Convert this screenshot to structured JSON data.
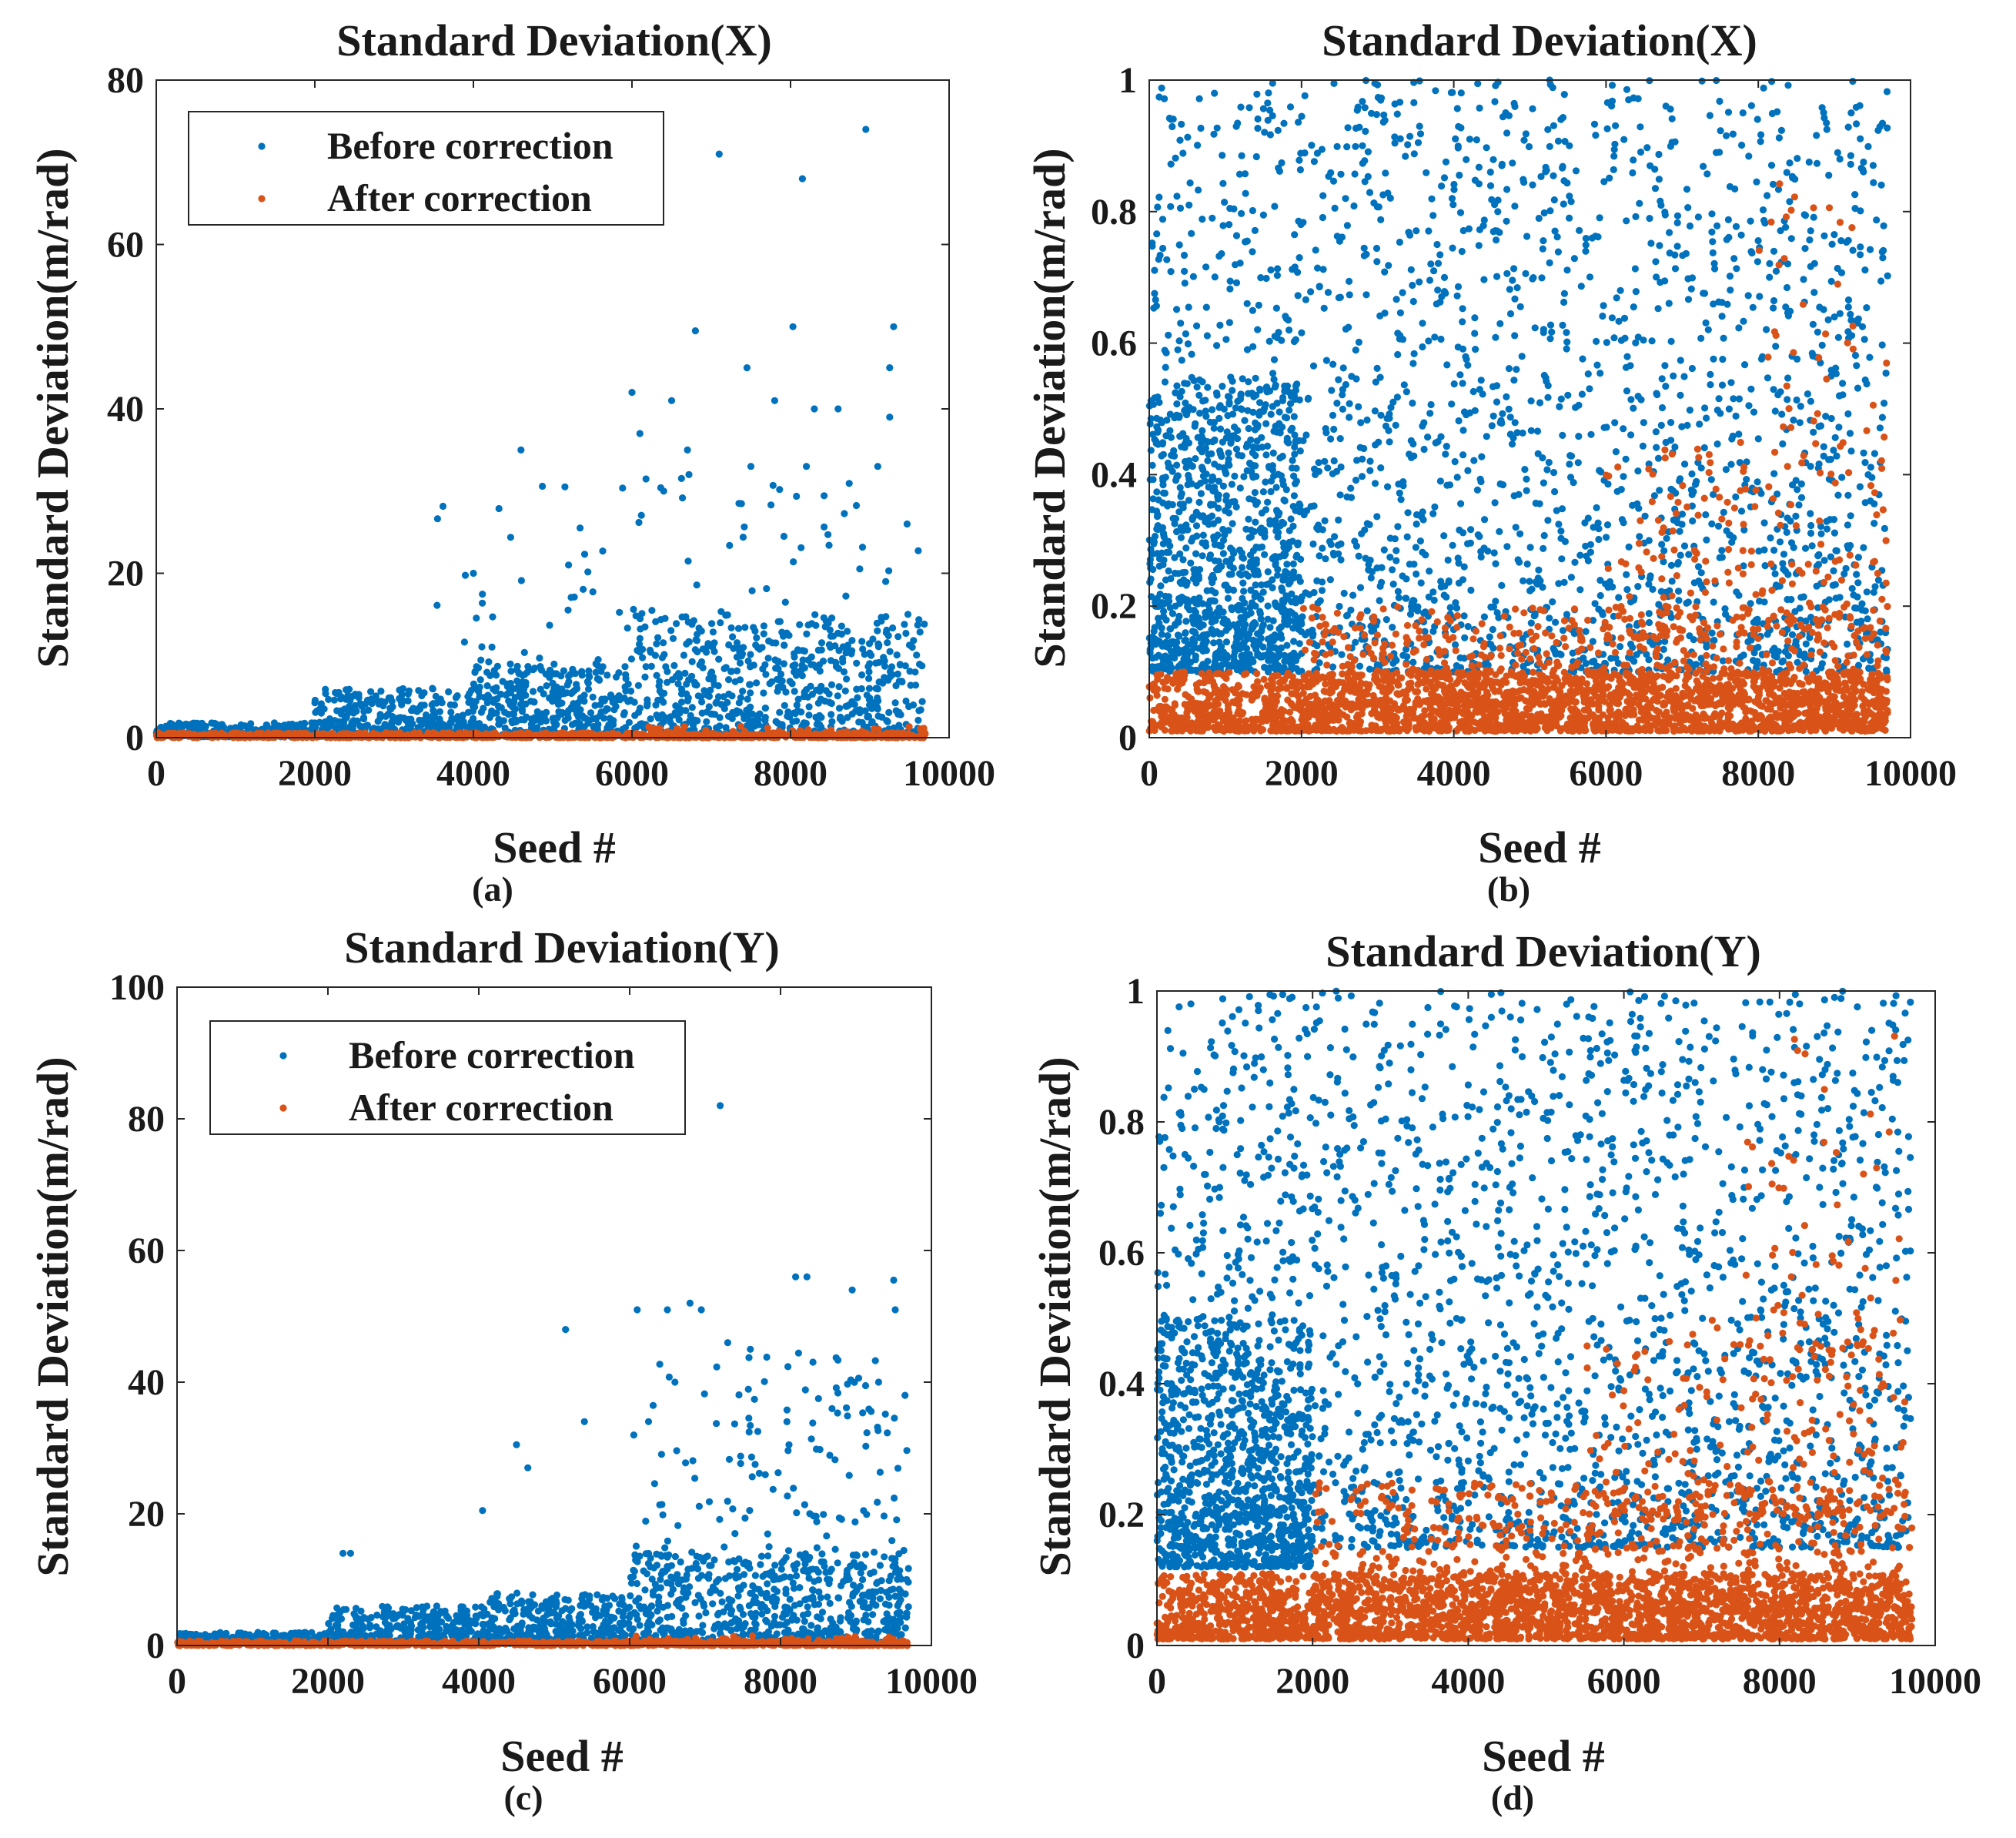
{
  "colors": {
    "before": "#0072BD",
    "after": "#D95319",
    "axis": "#262626"
  },
  "chart_data": [
    {
      "type": "scatter",
      "panel_label": "(a)",
      "title": "Standard Deviation(X)",
      "xlabel": "Seed #",
      "ylabel": "Standard Deviation(m/rad)",
      "xlim": [
        0,
        10000
      ],
      "ylim": [
        0,
        80
      ],
      "xticks": [
        0,
        2000,
        4000,
        6000,
        8000,
        10000
      ],
      "yticks": [
        0,
        20,
        40,
        60,
        80
      ],
      "xtick_labels": [
        "0",
        "2000",
        "4000",
        "6000",
        "8000",
        "10000"
      ],
      "ytick_labels": [
        "0",
        "20",
        "40",
        "60",
        "80"
      ],
      "legend": {
        "position": "top-left",
        "entries": [
          "Before correction",
          "After correction"
        ]
      },
      "series": [
        {
          "name": "Before correction",
          "color": "#0072BD",
          "values": [
            [
              8950,
              74
            ],
            [
              7100,
              71
            ],
            [
              8150,
              68
            ],
            [
              6800,
              49.5
            ],
            [
              8030,
              50
            ],
            [
              9300,
              50
            ],
            [
              6000,
              42
            ],
            [
              6100,
              37
            ],
            [
              6500,
              41
            ],
            [
              7450,
              45
            ],
            [
              7800,
              41
            ],
            [
              8600,
              40
            ],
            [
              8300,
              40
            ],
            [
              9250,
              45
            ],
            [
              9250,
              39
            ],
            [
              4600,
              35
            ],
            [
              6700,
              35
            ],
            [
              7500,
              33
            ],
            [
              8200,
              33
            ],
            [
              9100,
              33
            ],
            [
              5200,
              21
            ],
            [
              4000,
              20
            ],
            [
              6400,
              30
            ],
            [
              9200,
              19
            ]
          ],
          "generated_cloud": [
            {
              "x_range": [
                0,
                2000
              ],
              "y_range": [
                0.1,
                1.8
              ],
              "count": 260
            },
            {
              "x_range": [
                2000,
                4000
              ],
              "y_range": [
                0.2,
                6
              ],
              "count": 320
            },
            {
              "x_range": [
                4000,
                6000
              ],
              "y_range": [
                0.2,
                9
              ],
              "count": 380
            },
            {
              "x_range": [
                6000,
                9700
              ],
              "y_range": [
                0.3,
                15
              ],
              "count": 620
            },
            {
              "x_range": [
                3500,
                9700
              ],
              "y_range": [
                8,
                32
              ],
              "count": 110
            }
          ]
        },
        {
          "name": "After correction",
          "color": "#D95319",
          "generated_cloud": [
            {
              "x_range": [
                0,
                9700
              ],
              "y_range": [
                0,
                0.6
              ],
              "count": 900
            },
            {
              "x_range": [
                6200,
                9700
              ],
              "y_range": [
                0,
                1.4
              ],
              "count": 80
            }
          ]
        }
      ]
    },
    {
      "type": "scatter",
      "panel_label": "(b)",
      "title": "Standard Deviation(X)",
      "xlabel": "Seed #",
      "ylabel": "Standard Deviation(m/rad)",
      "xlim": [
        0,
        10000
      ],
      "ylim": [
        0,
        1
      ],
      "xticks": [
        0,
        2000,
        4000,
        6000,
        8000,
        10000
      ],
      "yticks": [
        0,
        0.2,
        0.4,
        0.6,
        0.8,
        1
      ],
      "xtick_labels": [
        "0",
        "2000",
        "4000",
        "6000",
        "8000",
        "10000"
      ],
      "ytick_labels": [
        "0",
        "0.2",
        "0.4",
        "0.6",
        "0.8",
        "1"
      ],
      "series": [
        {
          "name": "Before correction",
          "color": "#0072BD",
          "generated_cloud": [
            {
              "x_range": [
                0,
                2000
              ],
              "y_range": [
                0.1,
                0.55
              ],
              "count": 750
            },
            {
              "x_range": [
                0,
                9700
              ],
              "y_range": [
                0.1,
                1.0
              ],
              "count": 2300
            }
          ]
        },
        {
          "name": "After correction",
          "color": "#D95319",
          "generated_cloud": [
            {
              "x_range": [
                0,
                9700
              ],
              "y_range": [
                0.01,
                0.1
              ],
              "count": 2200
            },
            {
              "x_range": [
                2000,
                9700
              ],
              "y_range": [
                0.05,
                0.2
              ],
              "count": 650
            },
            {
              "x_range": [
                6000,
                9700
              ],
              "y_range": [
                0.15,
                0.45
              ],
              "count": 170
            },
            {
              "x_range": [
                8000,
                9700
              ],
              "y_range": [
                0.4,
                0.9
              ],
              "count": 40
            }
          ]
        }
      ]
    },
    {
      "type": "scatter",
      "panel_label": "(c)",
      "title": "Standard Deviation(Y)",
      "xlabel": "Seed #",
      "ylabel": "Standard Deviation(m/rad)",
      "xlim": [
        0,
        10000
      ],
      "ylim": [
        0,
        100
      ],
      "xticks": [
        0,
        2000,
        4000,
        6000,
        8000,
        10000
      ],
      "yticks": [
        0,
        20,
        40,
        60,
        80,
        100
      ],
      "xtick_labels": [
        "0",
        "2000",
        "4000",
        "6000",
        "8000",
        "10000"
      ],
      "ytick_labels": [
        "0",
        "20",
        "40",
        "60",
        "80",
        "100"
      ],
      "legend": {
        "position": "top-left",
        "entries": [
          "Before correction",
          "After correction"
        ]
      },
      "series": [
        {
          "name": "Before correction",
          "color": "#0072BD",
          "values": [
            [
              7200,
              82
            ],
            [
              5150,
              48
            ],
            [
              6100,
              51
            ],
            [
              6500,
              51
            ],
            [
              6800,
              52
            ],
            [
              6950,
              51
            ],
            [
              8200,
              56
            ],
            [
              8350,
              56
            ],
            [
              8950,
              54
            ],
            [
              9500,
              55.5
            ],
            [
              9520,
              51
            ],
            [
              4500,
              30.5
            ],
            [
              4650,
              27
            ],
            [
              4050,
              20.5
            ],
            [
              5400,
              34
            ],
            [
              6250,
              34
            ],
            [
              6600,
              40
            ],
            [
              7300,
              46
            ],
            [
              7600,
              45
            ],
            [
              9300,
              40
            ],
            [
              9650,
              38
            ],
            [
              2200,
              14
            ],
            [
              2300,
              14
            ]
          ],
          "generated_cloud": [
            {
              "x_range": [
                0,
                2000
              ],
              "y_range": [
                0.2,
                2
              ],
              "count": 260
            },
            {
              "x_range": [
                2000,
                4000
              ],
              "y_range": [
                0.2,
                6
              ],
              "count": 320
            },
            {
              "x_range": [
                4000,
                6000
              ],
              "y_range": [
                0.3,
                8
              ],
              "count": 380
            },
            {
              "x_range": [
                6000,
                9700
              ],
              "y_range": [
                0.5,
                14
              ],
              "count": 620
            },
            {
              "x_range": [
                6000,
                9700
              ],
              "y_range": [
                10,
                45
              ],
              "count": 160
            }
          ]
        },
        {
          "name": "After correction",
          "color": "#D95319",
          "generated_cloud": [
            {
              "x_range": [
                0,
                9700
              ],
              "y_range": [
                0,
                0.7
              ],
              "count": 900
            },
            {
              "x_range": [
                6000,
                9700
              ],
              "y_range": [
                0,
                1.5
              ],
              "count": 80
            }
          ]
        }
      ]
    },
    {
      "type": "scatter",
      "panel_label": "(d)",
      "title": "Standard Deviation(Y)",
      "xlabel": "Seed #",
      "ylabel": "Standard Deviation(m/rad)",
      "xlim": [
        0,
        10000
      ],
      "ylim": [
        0,
        1
      ],
      "xticks": [
        0,
        2000,
        4000,
        6000,
        8000,
        10000
      ],
      "yticks": [
        0,
        0.2,
        0.4,
        0.6,
        0.8,
        1
      ],
      "xtick_labels": [
        "0",
        "2000",
        "4000",
        "6000",
        "8000",
        "10000"
      ],
      "ytick_labels": [
        "0",
        "0.2",
        "0.4",
        "0.6",
        "0.8",
        "1"
      ],
      "series": [
        {
          "name": "Before correction",
          "color": "#0072BD",
          "generated_cloud": [
            {
              "x_range": [
                0,
                2000
              ],
              "y_range": [
                0.12,
                0.5
              ],
              "count": 800
            },
            {
              "x_range": [
                0,
                9700
              ],
              "y_range": [
                0.15,
                1.0
              ],
              "count": 2200
            }
          ]
        },
        {
          "name": "After correction",
          "color": "#D95319",
          "generated_cloud": [
            {
              "x_range": [
                0,
                9700
              ],
              "y_range": [
                0.01,
                0.11
              ],
              "count": 2300
            },
            {
              "x_range": [
                2000,
                9700
              ],
              "y_range": [
                0.05,
                0.25
              ],
              "count": 800
            },
            {
              "x_range": [
                5500,
                9700
              ],
              "y_range": [
                0.2,
                0.5
              ],
              "count": 200
            },
            {
              "x_range": [
                7500,
                9700
              ],
              "y_range": [
                0.45,
                0.95
              ],
              "count": 60
            }
          ]
        }
      ]
    }
  ]
}
